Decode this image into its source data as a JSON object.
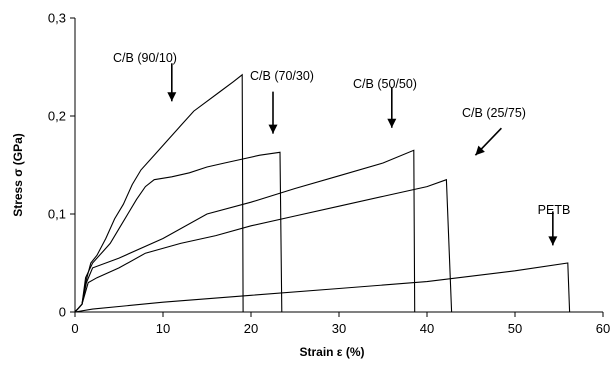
{
  "chart_data": {
    "type": "line",
    "title": "",
    "xlabel": "Strain ε (%)",
    "ylabel": "Stress σ (GPa)",
    "xlim": [
      0,
      60
    ],
    "ylim": [
      0,
      0.3
    ],
    "x_ticks": [
      0,
      10,
      20,
      30,
      40,
      50,
      60
    ],
    "x_tick_labels": [
      "0",
      "10",
      "20",
      "30",
      "40",
      "50",
      "60"
    ],
    "y_ticks": [
      0,
      0.1,
      0.2,
      0.3
    ],
    "y_tick_labels": [
      "0",
      "0,1",
      "0,2",
      "0,3"
    ],
    "grid": false,
    "legend": "none",
    "series": [
      {
        "name": "C/B (90/10)",
        "annotation_xy": [
          11,
          0.215
        ],
        "points": [
          [
            0,
            0
          ],
          [
            0.8,
            0.008
          ],
          [
            1.2,
            0.03
          ],
          [
            1.8,
            0.05
          ],
          [
            2.5,
            0.058
          ],
          [
            3.5,
            0.075
          ],
          [
            4.5,
            0.095
          ],
          [
            5.5,
            0.11
          ],
          [
            6.5,
            0.13
          ],
          [
            7.5,
            0.145
          ],
          [
            9,
            0.16
          ],
          [
            10.5,
            0.175
          ],
          [
            12,
            0.19
          ],
          [
            13.5,
            0.205
          ],
          [
            15,
            0.215
          ],
          [
            16.5,
            0.225
          ],
          [
            18,
            0.235
          ],
          [
            19,
            0.242
          ],
          [
            19.1,
            0
          ]
        ]
      },
      {
        "name": "C/B (70/30)",
        "annotation_xy": [
          22.5,
          0.182
        ],
        "points": [
          [
            0,
            0
          ],
          [
            0.8,
            0.008
          ],
          [
            1.2,
            0.035
          ],
          [
            2,
            0.05
          ],
          [
            3,
            0.06
          ],
          [
            4,
            0.07
          ],
          [
            5,
            0.085
          ],
          [
            6,
            0.1
          ],
          [
            7,
            0.115
          ],
          [
            8,
            0.128
          ],
          [
            9,
            0.135
          ],
          [
            11,
            0.138
          ],
          [
            13,
            0.142
          ],
          [
            15,
            0.148
          ],
          [
            17,
            0.152
          ],
          [
            19,
            0.156
          ],
          [
            21,
            0.16
          ],
          [
            23.3,
            0.163
          ],
          [
            23.5,
            0
          ]
        ]
      },
      {
        "name": "C/B (50/50)",
        "annotation_xy": [
          36,
          0.188
        ],
        "points": [
          [
            0,
            0
          ],
          [
            0.8,
            0.008
          ],
          [
            1.3,
            0.03
          ],
          [
            2,
            0.045
          ],
          [
            5,
            0.055
          ],
          [
            10,
            0.075
          ],
          [
            15,
            0.1
          ],
          [
            20,
            0.112
          ],
          [
            25,
            0.126
          ],
          [
            30,
            0.139
          ],
          [
            35,
            0.152
          ],
          [
            38.5,
            0.165
          ],
          [
            38.6,
            0
          ]
        ]
      },
      {
        "name": "C/B (25/75)",
        "annotation_xy": [
          45.5,
          0.16
        ],
        "points": [
          [
            0,
            0
          ],
          [
            0.8,
            0.008
          ],
          [
            1.5,
            0.03
          ],
          [
            2.5,
            0.035
          ],
          [
            5,
            0.045
          ],
          [
            8,
            0.06
          ],
          [
            12,
            0.07
          ],
          [
            16,
            0.078
          ],
          [
            20,
            0.088
          ],
          [
            25,
            0.098
          ],
          [
            30,
            0.108
          ],
          [
            35,
            0.118
          ],
          [
            40,
            0.128
          ],
          [
            42.2,
            0.135
          ],
          [
            42.8,
            0
          ]
        ]
      },
      {
        "name": "PETB",
        "annotation_xy": [
          54.3,
          0.068
        ],
        "points": [
          [
            0,
            0
          ],
          [
            2,
            0.003
          ],
          [
            10,
            0.01
          ],
          [
            20,
            0.017
          ],
          [
            30,
            0.024
          ],
          [
            40,
            0.031
          ],
          [
            50,
            0.042
          ],
          [
            56,
            0.05
          ],
          [
            56.2,
            0
          ]
        ]
      }
    ]
  }
}
